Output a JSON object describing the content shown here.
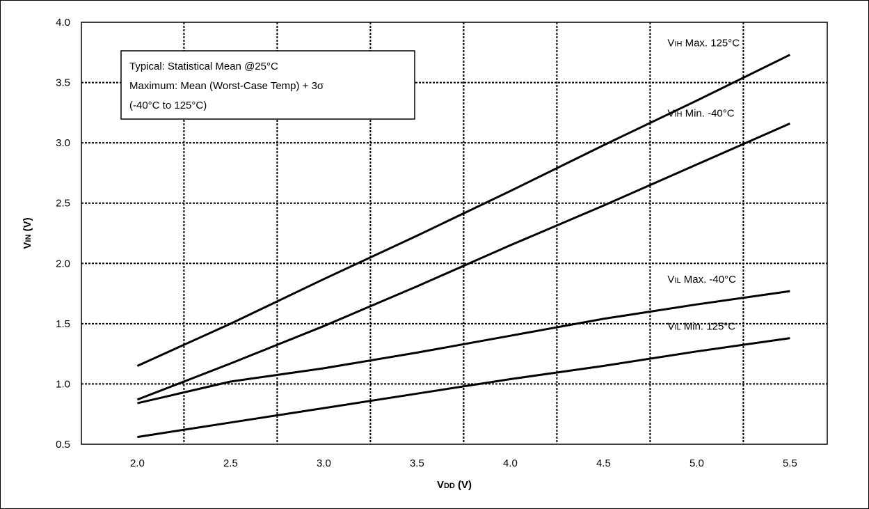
{
  "chart_data": {
    "type": "line",
    "xlabel": {
      "main": "V",
      "sub": "DD",
      "rest": " (V)"
    },
    "ylabel": {
      "main": "V",
      "sub": "IN",
      "rest": " (V)"
    },
    "xlim": [
      1.7,
      5.7
    ],
    "ylim": [
      0.5,
      4.0
    ],
    "x_ticks": [
      "2.0",
      "2.5",
      "3.0",
      "3.5",
      "4.0",
      "4.5",
      "5.0",
      "5.5"
    ],
    "y_ticks": [
      "0.5",
      "1.0",
      "1.5",
      "2.0",
      "2.5",
      "3.0",
      "3.5",
      "4.0"
    ],
    "grid": true,
    "annotation": [
      "Typical: Statistical Mean @25°C",
      "Maximum: Mean (Worst-Case Temp) + 3σ",
      "(-40°C to 125°C)"
    ],
    "series": [
      {
        "name": {
          "main": "V",
          "sub": "IH",
          "rest": " Max. 125°C"
        },
        "x": [
          2.0,
          2.5,
          3.0,
          3.5,
          4.0,
          4.5,
          5.0,
          5.5
        ],
        "y": [
          1.15,
          1.5,
          1.87,
          2.23,
          2.6,
          2.98,
          3.35,
          3.73
        ]
      },
      {
        "name": {
          "main": "V",
          "sub": "IH",
          "rest": " Min. -40°C"
        },
        "x": [
          2.0,
          2.5,
          3.0,
          3.5,
          4.0,
          4.5,
          5.0,
          5.5
        ],
        "y": [
          0.87,
          1.17,
          1.48,
          1.81,
          2.15,
          2.48,
          2.82,
          3.16
        ]
      },
      {
        "name": {
          "main": "V",
          "sub": "IL",
          "rest": " Max. -40°C"
        },
        "x": [
          2.0,
          2.5,
          3.0,
          3.5,
          4.0,
          4.5,
          5.0,
          5.5
        ],
        "y": [
          0.84,
          1.02,
          1.13,
          1.26,
          1.4,
          1.54,
          1.66,
          1.77
        ]
      },
      {
        "name": {
          "main": "V",
          "sub": "IL",
          "rest": " Min. 125°C"
        },
        "x": [
          2.0,
          2.5,
          3.0,
          3.5,
          4.0,
          4.5,
          5.0,
          5.5
        ],
        "y": [
          0.56,
          0.68,
          0.8,
          0.92,
          1.04,
          1.15,
          1.27,
          1.38
        ]
      }
    ]
  }
}
